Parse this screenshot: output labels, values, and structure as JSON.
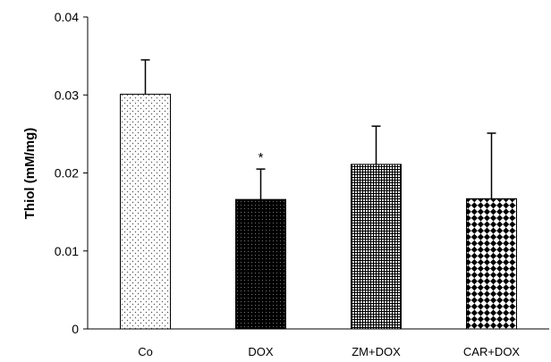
{
  "chart_data": {
    "type": "bar",
    "title": "",
    "xlabel": "",
    "ylabel": "Thiol (mM/mg)",
    "ylim": [
      0,
      0.04
    ],
    "yticks": [
      "0",
      "0.01",
      "0.02",
      "0.03",
      "0.04"
    ],
    "ytick_values": [
      0,
      0.01,
      0.02,
      0.03,
      0.04
    ],
    "categories": [
      "Co",
      "DOX",
      "ZM+DOX",
      "CAR+DOX"
    ],
    "values": [
      0.0301,
      0.0166,
      0.0211,
      0.0167
    ],
    "error_upper": [
      0.0044,
      0.0039,
      0.0049,
      0.0084
    ],
    "patterns": [
      "sparse-dots",
      "solid-black-dots",
      "fine-grid",
      "checker-diamond"
    ],
    "annotations": [
      {
        "category": "DOX",
        "text": "*"
      }
    ],
    "grid": false,
    "legend": "none"
  }
}
